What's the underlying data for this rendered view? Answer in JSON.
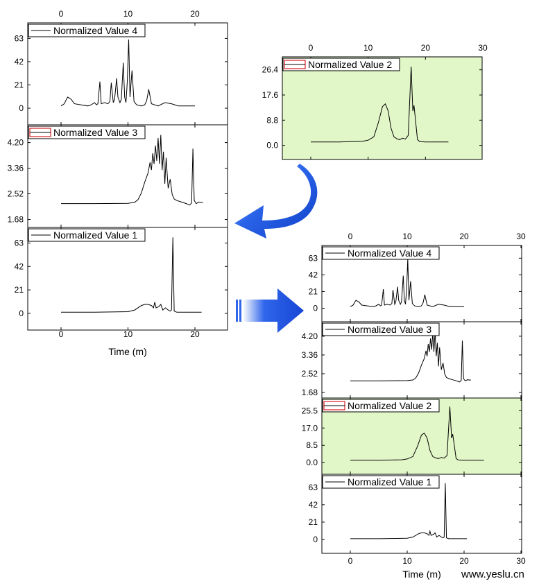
{
  "watermark": "www.yeslu.cn",
  "colors": {
    "highlight_bg": "#e1f7c8",
    "arrow_fill": "#1f56e0",
    "legend_swatch_red": "#d42020",
    "line": "#000000"
  },
  "icons": {
    "curved_arrow": "curved-arrow-icon",
    "right_arrow": "right-arrow-icon"
  },
  "chart_data": [
    {
      "type": "line",
      "name_hint": "left-stack",
      "x_ticks": [
        "0",
        "10",
        "20"
      ],
      "xlabel": "Time (m)",
      "xlim": [
        -5,
        25
      ],
      "panels": [
        {
          "legend": "Normalized Value 4",
          "legend_swatch": "line",
          "y_ticks": [
            "0",
            "21",
            "42",
            "63"
          ],
          "ylim": [
            -10,
            72
          ],
          "highlight": false,
          "x": [
            0,
            0.5,
            0.8,
            1.0,
            1.5,
            2.0,
            3.0,
            4.0,
            4.5,
            5.0,
            5.3,
            5.5,
            5.8,
            6.0,
            6.5,
            7.0,
            7.3,
            7.5,
            7.8,
            8.0,
            8.3,
            8.5,
            8.8,
            9.0,
            9.3,
            9.5,
            9.7,
            9.9,
            10.1,
            10.3,
            10.6,
            10.9,
            11.3,
            12.0,
            12.5,
            12.8,
            13.1,
            13.5,
            14.5,
            15.5,
            16.5,
            17.5,
            20.0
          ],
          "y": [
            2,
            4,
            8,
            10,
            8,
            4,
            3,
            2,
            3,
            5,
            3,
            4,
            24,
            4,
            5,
            4,
            6,
            23,
            5,
            8,
            27,
            10,
            5,
            8,
            41,
            10,
            5,
            24,
            62,
            10,
            34,
            6,
            3,
            2,
            3,
            7,
            17,
            4,
            2,
            5,
            4,
            2,
            2
          ]
        },
        {
          "legend": "Normalized Value 3",
          "legend_swatch": "red-box",
          "y_ticks": [
            "1.68",
            "2.52",
            "3.36",
            "4.20"
          ],
          "ylim": [
            1.6,
            4.6
          ],
          "highlight": false,
          "x": [
            0,
            5,
            10,
            11,
            11.5,
            12.0,
            12.5,
            13.0,
            13.3,
            13.5,
            13.7,
            13.9,
            14.1,
            14.3,
            14.5,
            14.7,
            14.9,
            15.1,
            15.3,
            15.5,
            15.7,
            16.0,
            16.3,
            16.6,
            16.9,
            17.3,
            18.0,
            18.7,
            19.2,
            19.5,
            19.7,
            19.9,
            20.2,
            20.6,
            21.2
          ],
          "y": [
            2.2,
            2.2,
            2.21,
            2.24,
            2.33,
            2.55,
            2.9,
            3.2,
            3.55,
            3.3,
            3.85,
            3.5,
            4.1,
            3.6,
            4.35,
            3.5,
            4.45,
            3.3,
            3.9,
            2.85,
            3.7,
            2.7,
            3.0,
            2.5,
            2.35,
            2.3,
            2.25,
            2.2,
            2.15,
            2.22,
            4.0,
            2.3,
            2.2,
            2.25,
            2.23
          ]
        },
        {
          "legend": "Normalized Value 1",
          "legend_swatch": "line",
          "y_ticks": [
            "0",
            "21",
            "42",
            "63"
          ],
          "ylim": [
            -10,
            72
          ],
          "highlight": false,
          "x": [
            0,
            5,
            10,
            11,
            12,
            12.5,
            13,
            13.5,
            13.8,
            14.0,
            14.2,
            14.6,
            14.9,
            15.2,
            15.6,
            16.0,
            16.3,
            16.5,
            16.7,
            16.9,
            17.3,
            21.0
          ],
          "y": [
            1,
            1,
            1.5,
            3,
            7,
            8,
            8,
            7,
            5,
            10,
            5,
            6,
            8,
            3,
            5,
            3,
            2,
            3,
            68,
            2,
            1,
            1
          ]
        }
      ]
    },
    {
      "type": "line",
      "name_hint": "top-right-single",
      "x_ticks": [
        "0",
        "10",
        "20",
        "30"
      ],
      "xlim": [
        -5,
        30
      ],
      "xlabel": "",
      "panels": [
        {
          "legend": "Normalized Value 2",
          "legend_swatch": "red-box",
          "y_ticks": [
            "0.0",
            "8.8",
            "17.6",
            "26.4"
          ],
          "ylim": [
            -3,
            29
          ],
          "highlight": true,
          "x": [
            0,
            5,
            9,
            10,
            11,
            11.8,
            12.5,
            13.0,
            13.5,
            14.0,
            14.5,
            15.0,
            15.5,
            16.0,
            16.5,
            17.0,
            17.5,
            17.8,
            18.0,
            18.3,
            18.6,
            19.0,
            20.0,
            24.0
          ],
          "y": [
            1.2,
            1.2,
            1.4,
            1.8,
            3.0,
            8.0,
            13.5,
            14.5,
            12.0,
            6.0,
            3.0,
            2.3,
            2.0,
            2.5,
            2.2,
            3.5,
            27.5,
            12.0,
            14.0,
            8.0,
            2.0,
            1.3,
            1.2,
            1.2
          ]
        }
      ]
    },
    {
      "type": "line",
      "name_hint": "right-stack",
      "x_ticks": [
        "0",
        "10",
        "20",
        "30"
      ],
      "xlabel": "Time (m)",
      "xlim": [
        -5,
        30
      ],
      "panels": [
        {
          "legend": "Normalized Value 4",
          "legend_swatch": "line",
          "y_ticks": [
            "0",
            "21",
            "42",
            "63"
          ],
          "ylim": [
            -10,
            72
          ],
          "highlight": false,
          "x": [
            0,
            0.5,
            0.8,
            1.0,
            1.5,
            2.0,
            3.0,
            4.0,
            4.5,
            5.0,
            5.3,
            5.5,
            5.8,
            6.0,
            6.5,
            7.0,
            7.3,
            7.5,
            7.8,
            8.0,
            8.3,
            8.5,
            8.8,
            9.0,
            9.3,
            9.5,
            9.7,
            9.9,
            10.1,
            10.3,
            10.6,
            10.9,
            11.3,
            12.0,
            12.5,
            12.8,
            13.1,
            13.5,
            14.5,
            15.5,
            16.5,
            17.5,
            20.0
          ],
          "y": [
            2,
            4,
            8,
            10,
            8,
            4,
            3,
            2,
            3,
            5,
            3,
            4,
            24,
            4,
            5,
            4,
            6,
            23,
            5,
            8,
            27,
            10,
            5,
            8,
            41,
            10,
            5,
            24,
            62,
            10,
            34,
            6,
            3,
            2,
            3,
            7,
            17,
            4,
            2,
            5,
            4,
            2,
            2
          ]
        },
        {
          "legend": "Normalized Value 3",
          "legend_swatch": "line",
          "y_ticks": [
            "1.68",
            "2.52",
            "3.36",
            "4.20"
          ],
          "ylim": [
            1.68,
            4.6
          ],
          "highlight": false,
          "x": [
            0,
            5,
            10,
            11,
            11.5,
            12.0,
            12.5,
            13.0,
            13.3,
            13.5,
            13.7,
            13.9,
            14.1,
            14.3,
            14.5,
            14.7,
            14.9,
            15.1,
            15.3,
            15.5,
            15.7,
            16.0,
            16.3,
            16.6,
            16.9,
            17.3,
            18.0,
            18.7,
            19.2,
            19.5,
            19.7,
            19.9,
            20.2,
            20.6,
            21.2
          ],
          "y": [
            2.2,
            2.2,
            2.21,
            2.24,
            2.33,
            2.55,
            2.9,
            3.2,
            3.55,
            3.3,
            3.85,
            3.5,
            4.1,
            3.6,
            4.35,
            3.5,
            4.45,
            3.3,
            3.9,
            2.85,
            3.7,
            2.7,
            3.0,
            2.5,
            2.35,
            2.3,
            2.25,
            2.2,
            2.15,
            2.22,
            4.0,
            2.3,
            2.2,
            2.25,
            2.23
          ]
        },
        {
          "legend": "Normalized Value 2",
          "legend_swatch": "red-box",
          "y_ticks": [
            "0.0",
            "8.5",
            "17.0",
            "25.5"
          ],
          "ylim": [
            -3,
            29
          ],
          "highlight": true,
          "x": [
            0,
            5,
            9,
            10,
            11,
            11.8,
            12.5,
            13.0,
            13.5,
            14.0,
            14.5,
            15.0,
            15.5,
            16.0,
            16.5,
            17.0,
            17.5,
            17.8,
            18.0,
            18.3,
            18.6,
            19.0,
            20.0,
            23.5
          ],
          "y": [
            1.2,
            1.2,
            1.4,
            1.8,
            3.0,
            8.0,
            13.5,
            14.5,
            12.0,
            6.0,
            3.0,
            2.3,
            2.0,
            2.5,
            2.2,
            3.5,
            27.5,
            12.0,
            14.0,
            8.0,
            2.0,
            1.3,
            1.2,
            1.2
          ]
        },
        {
          "legend": "Normalized Value 1",
          "legend_swatch": "line",
          "y_ticks": [
            "0",
            "21",
            "42",
            "63"
          ],
          "ylim": [
            -10,
            72
          ],
          "highlight": false,
          "x": [
            0,
            5,
            10,
            11,
            12,
            12.5,
            13,
            13.5,
            13.8,
            14.0,
            14.2,
            14.6,
            14.9,
            15.2,
            15.6,
            16.0,
            16.3,
            16.5,
            16.7,
            16.9,
            17.3,
            20.5
          ],
          "y": [
            1,
            1,
            1.5,
            3,
            7,
            8,
            8,
            7,
            5,
            10,
            5,
            6,
            8,
            3,
            5,
            3,
            2,
            3,
            68,
            2,
            1,
            1
          ]
        }
      ]
    }
  ]
}
